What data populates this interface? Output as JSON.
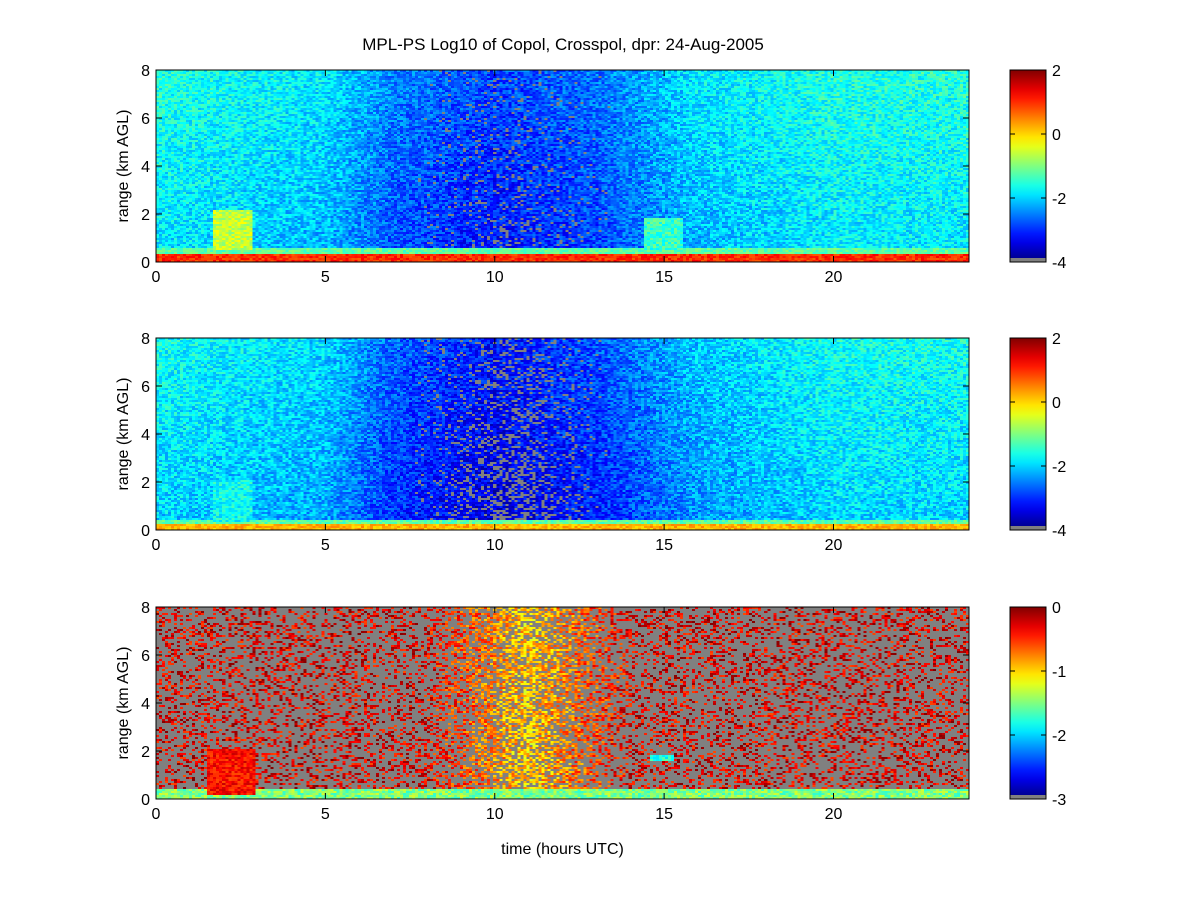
{
  "figure": {
    "title": "MPL-PS Log10 of Copol, Crosspol, dpr: 24-Aug-2005"
  },
  "chart_data": [
    {
      "type": "heatmap",
      "title": "MPL-PS Log10 of Copol, Crosspol, dpr: 24-Aug-2005",
      "xlabel": "",
      "ylabel": "range (km AGL)",
      "xlim": [
        0,
        24
      ],
      "ylim": [
        0,
        8
      ],
      "xticks": [
        0,
        5,
        10,
        15,
        20
      ],
      "yticks": [
        0,
        2,
        4,
        6,
        8
      ],
      "colorbar": {
        "min": -4,
        "max": 2,
        "ticks": [
          2,
          0,
          -2,
          -4
        ],
        "colormap": "jet"
      },
      "missing_color": "#808080",
      "features": {
        "background_by_hour": [
          [
            0,
            -1.9
          ],
          [
            5,
            -2.2
          ],
          [
            7,
            -2.8
          ],
          [
            10,
            -3.2
          ],
          [
            13,
            -2.9
          ],
          [
            16,
            -2.2
          ],
          [
            20,
            -1.9
          ],
          [
            24,
            -1.9
          ]
        ],
        "surface_layer": {
          "top_km": 0.35,
          "value": 1.0
        },
        "clouds": [
          {
            "x_start": 1.7,
            "x_end": 2.8,
            "base_km": 0.5,
            "top_km": 2.2,
            "value": -0.6
          },
          {
            "x_start": 14.4,
            "x_end": 15.6,
            "base_km": 0.5,
            "top_km": 1.8,
            "value": -1.4
          }
        ]
      }
    },
    {
      "type": "heatmap",
      "xlabel": "",
      "ylabel": "range (km AGL)",
      "xlim": [
        0,
        24
      ],
      "ylim": [
        0,
        8
      ],
      "xticks": [
        0,
        5,
        10,
        15,
        20
      ],
      "yticks": [
        0,
        2,
        4,
        6,
        8
      ],
      "colorbar": {
        "min": -4,
        "max": 2,
        "ticks": [
          2,
          0,
          -2,
          -4
        ],
        "colormap": "jet"
      },
      "missing_color": "#808080",
      "features": {
        "background_by_hour": [
          [
            0,
            -2.0
          ],
          [
            5,
            -2.3
          ],
          [
            7,
            -3.0
          ],
          [
            10,
            -3.5
          ],
          [
            13,
            -3.1
          ],
          [
            16,
            -2.4
          ],
          [
            20,
            -2.0
          ],
          [
            24,
            -2.0
          ]
        ],
        "surface_layer": {
          "top_km": 0.25,
          "value": 0.2
        },
        "clouds": [
          {
            "x_start": 1.7,
            "x_end": 2.8,
            "base_km": 0.3,
            "top_km": 2.1,
            "value": -1.7
          }
        ]
      }
    },
    {
      "type": "heatmap",
      "xlabel": "time (hours UTC)",
      "ylabel": "range (km AGL)",
      "xlim": [
        0,
        24
      ],
      "ylim": [
        0,
        8
      ],
      "xticks": [
        0,
        5,
        10,
        15,
        20
      ],
      "yticks": [
        0,
        2,
        4,
        6,
        8
      ],
      "colorbar": {
        "min": -3,
        "max": 0,
        "ticks": [
          0,
          -1,
          -2,
          -3
        ],
        "colormap": "jet"
      },
      "missing_color": "#808080",
      "features": {
        "background_value": -0.3,
        "midday_value": -0.8,
        "surface_layer": {
          "top_km": 0.4,
          "value": -1.5
        },
        "clouds": [
          {
            "x_start": 1.5,
            "x_end": 2.9,
            "base_km": 0.2,
            "top_km": 2.1,
            "value": -0.4
          },
          {
            "x_start": 14.6,
            "x_end": 15.3,
            "base_km": 1.6,
            "top_km": 1.8,
            "value": -1.8
          }
        ]
      }
    }
  ]
}
